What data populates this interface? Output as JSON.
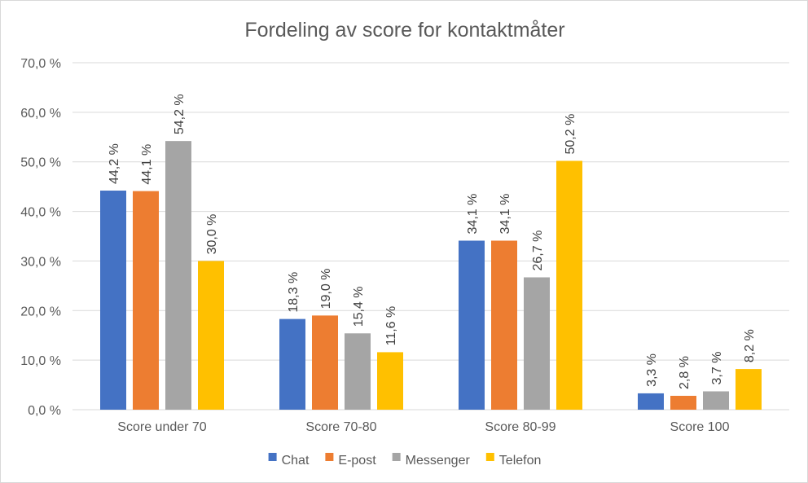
{
  "chart_data": {
    "type": "bar",
    "title": "Fordeling av score for kontaktmåter",
    "categories": [
      "Score under 70",
      "Score 70-80",
      "Score 80-99",
      "Score 100"
    ],
    "series": [
      {
        "name": "Chat",
        "color": "#4472C4",
        "values": [
          44.2,
          18.3,
          34.1,
          3.3
        ],
        "labels": [
          "44,2 %",
          "18,3 %",
          "34,1 %",
          "3,3 %"
        ]
      },
      {
        "name": "E-post",
        "color": "#ED7D31",
        "values": [
          44.1,
          19.0,
          34.1,
          2.8
        ],
        "labels": [
          "44,1 %",
          "19,0 %",
          "34,1 %",
          "2,8 %"
        ]
      },
      {
        "name": "Messenger",
        "color": "#A5A5A5",
        "values": [
          54.2,
          15.4,
          26.7,
          3.7
        ],
        "labels": [
          "54,2 %",
          "15,4 %",
          "26,7 %",
          "3,7 %"
        ]
      },
      {
        "name": "Telefon",
        "color": "#FFC000",
        "values": [
          30.0,
          11.6,
          50.2,
          8.2
        ],
        "labels": [
          "30,0 %",
          "11,6 %",
          "50,2 %",
          "8,2 %"
        ]
      }
    ],
    "yticks": [
      0,
      10,
      20,
      30,
      40,
      50,
      60,
      70
    ],
    "ytick_labels": [
      "0,0 %",
      "10,0 %",
      "20,0 %",
      "30,0 %",
      "40,0 %",
      "50,0 %",
      "60,0 %",
      "70,0 %"
    ],
    "ylim": [
      0,
      70
    ],
    "grid": true,
    "legend_position": "bottom",
    "xlabel": "",
    "ylabel": ""
  }
}
